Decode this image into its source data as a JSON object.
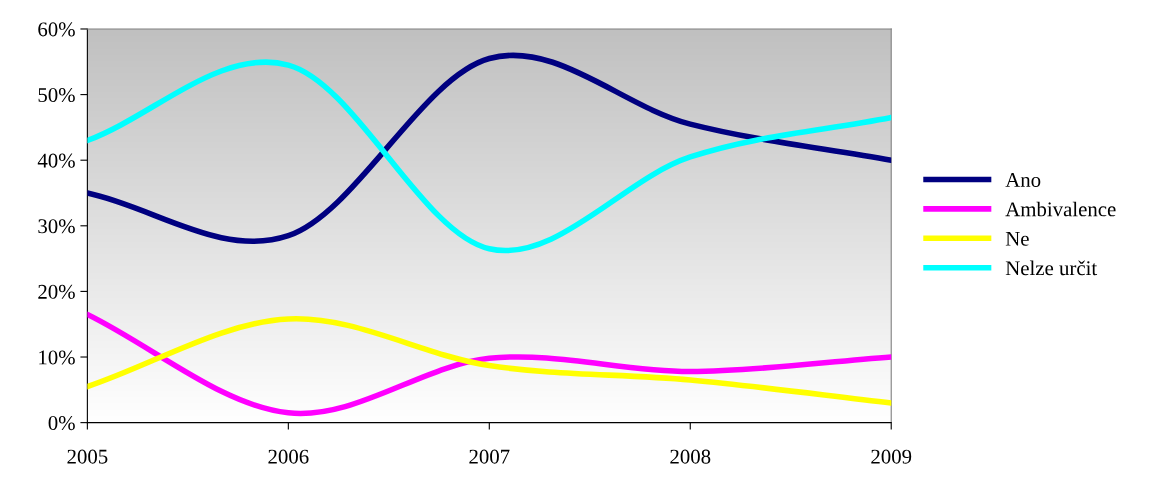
{
  "chart_data": {
    "type": "line",
    "x": [
      2005,
      2006,
      2007,
      2008,
      2009
    ],
    "series": [
      {
        "name": "Ano",
        "color": "#000080",
        "values": [
          35,
          28.5,
          55.5,
          45.5,
          40
        ]
      },
      {
        "name": "Ambivalence",
        "color": "#ff00ff",
        "values": [
          16.5,
          1.5,
          9.8,
          7.8,
          10
        ]
      },
      {
        "name": "Ne",
        "color": "#ffff00",
        "values": [
          5.5,
          15.8,
          8.7,
          6.5,
          3
        ]
      },
      {
        "name": "Nelze určit",
        "color": "#00ffff",
        "values": [
          43,
          54.5,
          26.5,
          40.5,
          46.5
        ]
      }
    ],
    "xlim": [
      2005,
      2009
    ],
    "xticks": [
      2005,
      2006,
      2007,
      2008,
      2009
    ],
    "ylim": [
      0,
      60
    ],
    "yticks": [
      {
        "value": 0,
        "label": "0%"
      },
      {
        "value": 10,
        "label": "10%"
      },
      {
        "value": 20,
        "label": "20%"
      },
      {
        "value": 30,
        "label": "30%"
      },
      {
        "value": 40,
        "label": "40%"
      },
      {
        "value": 50,
        "label": "50%"
      },
      {
        "value": 60,
        "label": "60%"
      }
    ],
    "grid": false,
    "legend": "right",
    "marker": "none",
    "line_style": "solid"
  }
}
